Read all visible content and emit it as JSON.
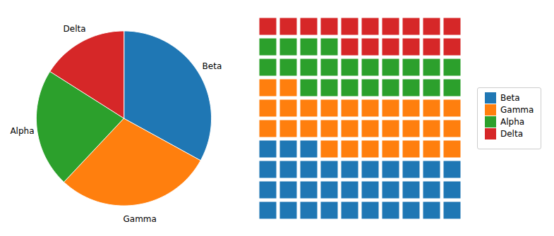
{
  "chart_data": [
    {
      "type": "pie",
      "categories": [
        "Beta",
        "Gamma",
        "Alpha",
        "Delta"
      ],
      "values": [
        33,
        29,
        22,
        16
      ],
      "colors": [
        "#1f77b4",
        "#ff7f0e",
        "#2ca02c",
        "#d62728"
      ]
    },
    {
      "type": "waffle",
      "categories": [
        "Beta",
        "Gamma",
        "Alpha",
        "Delta"
      ],
      "values": [
        33,
        29,
        22,
        16
      ],
      "colors": [
        "#1f77b4",
        "#ff7f0e",
        "#2ca02c",
        "#d62728"
      ],
      "legend": "right"
    }
  ]
}
